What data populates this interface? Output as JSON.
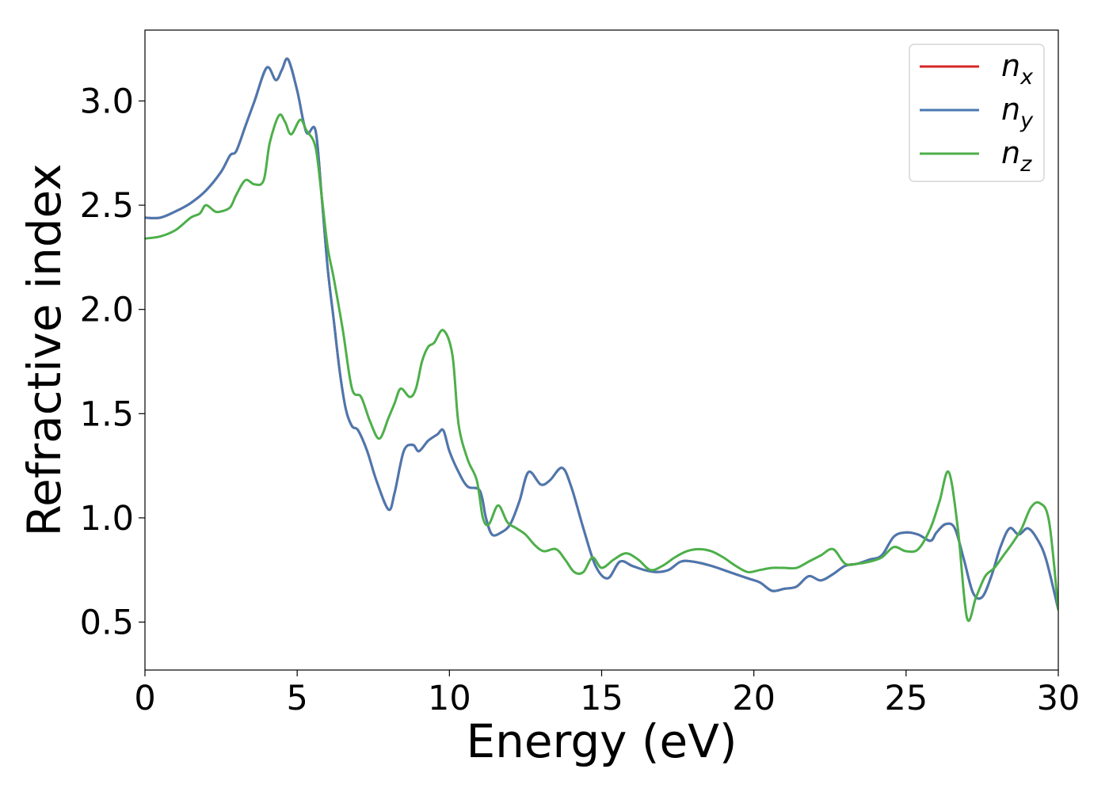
{
  "chart_data": {
    "type": "line",
    "xlabel": "Energy (eV)",
    "ylabel": "Refractive index",
    "xlim": [
      0,
      30
    ],
    "ylim": [
      0.27,
      3.34
    ],
    "xticks": [
      0,
      5,
      10,
      15,
      20,
      25,
      30
    ],
    "xtick_labels": [
      "0",
      "5",
      "10",
      "15",
      "20",
      "25",
      "30"
    ],
    "yticks": [
      0.5,
      1.0,
      1.5,
      2.0,
      2.5,
      3.0
    ],
    "ytick_labels": [
      "0.5",
      "1.0",
      "1.5",
      "2.0",
      "2.5",
      "3.0"
    ],
    "grid": false,
    "legend_position": "top-right",
    "series": [
      {
        "name": "n_x",
        "label_base": "n",
        "label_sub": "x",
        "color": "#d62728",
        "x": [
          0,
          0.5,
          1,
          1.5,
          2,
          2.5,
          2.8,
          3,
          3.3,
          3.6,
          4,
          4.3,
          4.5,
          4.7,
          5,
          5.3,
          5.6,
          5.8,
          6,
          6.2,
          6.4,
          6.6,
          6.8,
          7,
          7.3,
          7.6,
          8,
          8.2,
          8.5,
          8.8,
          9,
          9.3,
          9.6,
          9.8,
          10,
          10.3,
          10.6,
          11,
          11.2,
          11.4,
          11.7,
          12,
          12.3,
          12.6,
          13,
          13.3,
          13.7,
          14,
          14.4,
          14.8,
          15.2,
          15.6,
          16,
          16.4,
          16.8,
          17.2,
          17.6,
          18,
          18.6,
          19.2,
          19.8,
          20.2,
          20.6,
          21,
          21.4,
          21.8,
          22.2,
          22.6,
          23,
          23.4,
          23.8,
          24.2,
          24.6,
          25,
          25.4,
          25.8,
          26,
          26.3,
          26.6,
          26.9,
          27.2,
          27.5,
          27.8,
          28.1,
          28.4,
          28.7,
          29,
          29.3,
          29.6,
          30
        ],
        "values": [
          2.44,
          2.44,
          2.47,
          2.51,
          2.57,
          2.66,
          2.74,
          2.76,
          2.88,
          3.0,
          3.16,
          3.1,
          3.15,
          3.2,
          3.05,
          2.85,
          2.86,
          2.55,
          2.2,
          1.95,
          1.7,
          1.52,
          1.44,
          1.42,
          1.32,
          1.18,
          1.04,
          1.12,
          1.32,
          1.35,
          1.32,
          1.37,
          1.4,
          1.42,
          1.32,
          1.22,
          1.15,
          1.13,
          1.0,
          0.92,
          0.93,
          0.97,
          1.08,
          1.22,
          1.16,
          1.18,
          1.24,
          1.15,
          0.95,
          0.77,
          0.71,
          0.79,
          0.77,
          0.75,
          0.74,
          0.75,
          0.79,
          0.79,
          0.77,
          0.74,
          0.71,
          0.69,
          0.65,
          0.66,
          0.67,
          0.72,
          0.7,
          0.73,
          0.77,
          0.78,
          0.8,
          0.82,
          0.91,
          0.93,
          0.92,
          0.89,
          0.93,
          0.97,
          0.95,
          0.8,
          0.64,
          0.62,
          0.72,
          0.86,
          0.95,
          0.92,
          0.95,
          0.9,
          0.8,
          0.56
        ]
      },
      {
        "name": "n_y",
        "label_base": "n",
        "label_sub": "y",
        "color": "#4a78b0",
        "x": [
          0,
          0.5,
          1,
          1.5,
          2,
          2.5,
          2.8,
          3,
          3.3,
          3.6,
          4,
          4.3,
          4.5,
          4.7,
          5,
          5.3,
          5.6,
          5.8,
          6,
          6.2,
          6.4,
          6.6,
          6.8,
          7,
          7.3,
          7.6,
          8,
          8.2,
          8.5,
          8.8,
          9,
          9.3,
          9.6,
          9.8,
          10,
          10.3,
          10.6,
          11,
          11.2,
          11.4,
          11.7,
          12,
          12.3,
          12.6,
          13,
          13.3,
          13.7,
          14,
          14.4,
          14.8,
          15.2,
          15.6,
          16,
          16.4,
          16.8,
          17.2,
          17.6,
          18,
          18.6,
          19.2,
          19.8,
          20.2,
          20.6,
          21,
          21.4,
          21.8,
          22.2,
          22.6,
          23,
          23.4,
          23.8,
          24.2,
          24.6,
          25,
          25.4,
          25.8,
          26,
          26.3,
          26.6,
          26.9,
          27.2,
          27.5,
          27.8,
          28.1,
          28.4,
          28.7,
          29,
          29.3,
          29.6,
          30
        ],
        "values": [
          2.44,
          2.44,
          2.47,
          2.51,
          2.57,
          2.66,
          2.74,
          2.76,
          2.88,
          3.0,
          3.16,
          3.1,
          3.15,
          3.2,
          3.05,
          2.85,
          2.86,
          2.55,
          2.2,
          1.95,
          1.7,
          1.52,
          1.44,
          1.42,
          1.32,
          1.18,
          1.04,
          1.12,
          1.32,
          1.35,
          1.32,
          1.37,
          1.4,
          1.42,
          1.32,
          1.22,
          1.15,
          1.13,
          1.0,
          0.92,
          0.93,
          0.97,
          1.08,
          1.22,
          1.16,
          1.18,
          1.24,
          1.15,
          0.95,
          0.77,
          0.71,
          0.79,
          0.77,
          0.75,
          0.74,
          0.75,
          0.79,
          0.79,
          0.77,
          0.74,
          0.71,
          0.69,
          0.65,
          0.66,
          0.67,
          0.72,
          0.7,
          0.73,
          0.77,
          0.78,
          0.8,
          0.82,
          0.91,
          0.93,
          0.92,
          0.89,
          0.93,
          0.97,
          0.95,
          0.8,
          0.64,
          0.62,
          0.72,
          0.86,
          0.95,
          0.92,
          0.95,
          0.9,
          0.8,
          0.56
        ]
      },
      {
        "name": "n_z",
        "label_base": "n",
        "label_sub": "z",
        "color": "#4daf4a",
        "x": [
          0,
          0.5,
          1,
          1.5,
          1.8,
          2,
          2.3,
          2.5,
          2.8,
          3,
          3.3,
          3.6,
          3.9,
          4.1,
          4.4,
          4.6,
          4.8,
          5.1,
          5.3,
          5.6,
          5.8,
          6,
          6.2,
          6.5,
          6.8,
          7.1,
          7.4,
          7.7,
          8,
          8.2,
          8.4,
          8.7,
          8.9,
          9.1,
          9.3,
          9.5,
          9.8,
          10.1,
          10.3,
          10.6,
          10.9,
          11.1,
          11.3,
          11.6,
          11.9,
          12.2,
          12.5,
          12.8,
          13.1,
          13.5,
          13.8,
          14.1,
          14.4,
          14.7,
          15,
          15.4,
          15.8,
          16.2,
          16.6,
          17,
          17.4,
          17.8,
          18.2,
          18.6,
          19,
          19.4,
          19.8,
          20.2,
          20.6,
          21,
          21.4,
          21.8,
          22.2,
          22.6,
          23,
          23.4,
          23.8,
          24.2,
          24.6,
          25,
          25.4,
          25.8,
          26.1,
          26.4,
          26.7,
          27,
          27.3,
          27.6,
          27.9,
          28.2,
          28.5,
          28.8,
          29.1,
          29.4,
          29.7,
          30
        ],
        "values": [
          2.34,
          2.35,
          2.38,
          2.44,
          2.46,
          2.5,
          2.47,
          2.47,
          2.49,
          2.55,
          2.62,
          2.6,
          2.62,
          2.8,
          2.93,
          2.9,
          2.84,
          2.91,
          2.86,
          2.78,
          2.55,
          2.3,
          2.15,
          1.9,
          1.62,
          1.58,
          1.46,
          1.38,
          1.48,
          1.55,
          1.62,
          1.58,
          1.62,
          1.75,
          1.82,
          1.84,
          1.9,
          1.78,
          1.45,
          1.28,
          1.18,
          1.0,
          0.97,
          1.06,
          0.98,
          0.95,
          0.92,
          0.87,
          0.84,
          0.85,
          0.8,
          0.74,
          0.74,
          0.81,
          0.76,
          0.8,
          0.83,
          0.8,
          0.75,
          0.77,
          0.81,
          0.84,
          0.85,
          0.84,
          0.81,
          0.77,
          0.74,
          0.75,
          0.76,
          0.76,
          0.76,
          0.79,
          0.82,
          0.85,
          0.78,
          0.78,
          0.79,
          0.81,
          0.86,
          0.84,
          0.85,
          0.95,
          1.08,
          1.22,
          0.95,
          0.52,
          0.62,
          0.72,
          0.76,
          0.82,
          0.88,
          0.95,
          1.05,
          1.07,
          0.98,
          0.56
        ]
      }
    ]
  }
}
